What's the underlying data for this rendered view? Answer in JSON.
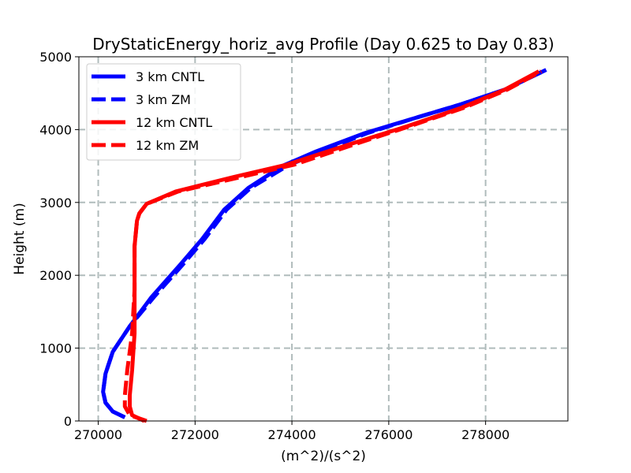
{
  "chart_data": {
    "type": "line",
    "title": "DryStaticEnergy_horiz_avg Profile (Day 0.625 to Day 0.83)",
    "xlabel": "(m^2)/(s^2)",
    "ylabel": "Height (m)",
    "xlim": [
      269600,
      279700
    ],
    "ylim": [
      0,
      5000
    ],
    "xticks": [
      270000,
      272000,
      274000,
      276000,
      278000
    ],
    "yticks": [
      0,
      1000,
      2000,
      3000,
      4000,
      5000
    ],
    "grid": true,
    "legend_position": "upper-left",
    "series": [
      {
        "name": "3 km CNTL",
        "color": "#0000ff",
        "style": "solid",
        "x": [
          270550,
          270300,
          270150,
          270100,
          270150,
          270300,
          270650,
          271100,
          271700,
          272150,
          272600,
          273100,
          273800,
          274500,
          275500,
          276500,
          277500,
          278400,
          279250
        ],
        "y": [
          50,
          130,
          250,
          400,
          650,
          950,
          1300,
          1700,
          2150,
          2500,
          2900,
          3200,
          3500,
          3700,
          3950,
          4150,
          4350,
          4550,
          4820
        ]
      },
      {
        "name": "3 km ZM",
        "color": "#0000ff",
        "style": "dashed",
        "x": [
          270550,
          270300,
          270150,
          270100,
          270150,
          270300,
          270650,
          271150,
          271750,
          272200,
          272650,
          273150,
          273900,
          274600,
          275550,
          276500,
          277500,
          278400,
          279250
        ],
        "y": [
          50,
          130,
          250,
          400,
          650,
          950,
          1300,
          1700,
          2150,
          2500,
          2900,
          3200,
          3500,
          3700,
          3950,
          4150,
          4350,
          4550,
          4820
        ]
      },
      {
        "name": "12 km CNTL",
        "color": "#ff0000",
        "style": "solid",
        "x": [
          270950,
          270700,
          270650,
          270650,
          270700,
          270750,
          270750,
          270750,
          270800,
          270850,
          271000,
          271600,
          272800,
          273900,
          275200,
          276400,
          277500,
          278400,
          279100
        ],
        "y": [
          0,
          80,
          200,
          350,
          700,
          1200,
          1800,
          2400,
          2750,
          2850,
          2980,
          3150,
          3350,
          3520,
          3800,
          4050,
          4300,
          4550,
          4800
        ]
      },
      {
        "name": "12 km ZM",
        "color": "#ff0000",
        "style": "dashed",
        "x": [
          271000,
          270650,
          270550,
          270550,
          270600,
          270700,
          270750,
          270750,
          270800,
          270850,
          271000,
          271650,
          272950,
          274050,
          275300,
          276450,
          277550,
          278450,
          279150
        ],
        "y": [
          0,
          80,
          200,
          350,
          700,
          1200,
          1800,
          2400,
          2750,
          2850,
          2980,
          3150,
          3350,
          3520,
          3800,
          4050,
          4300,
          4550,
          4800
        ]
      }
    ]
  }
}
